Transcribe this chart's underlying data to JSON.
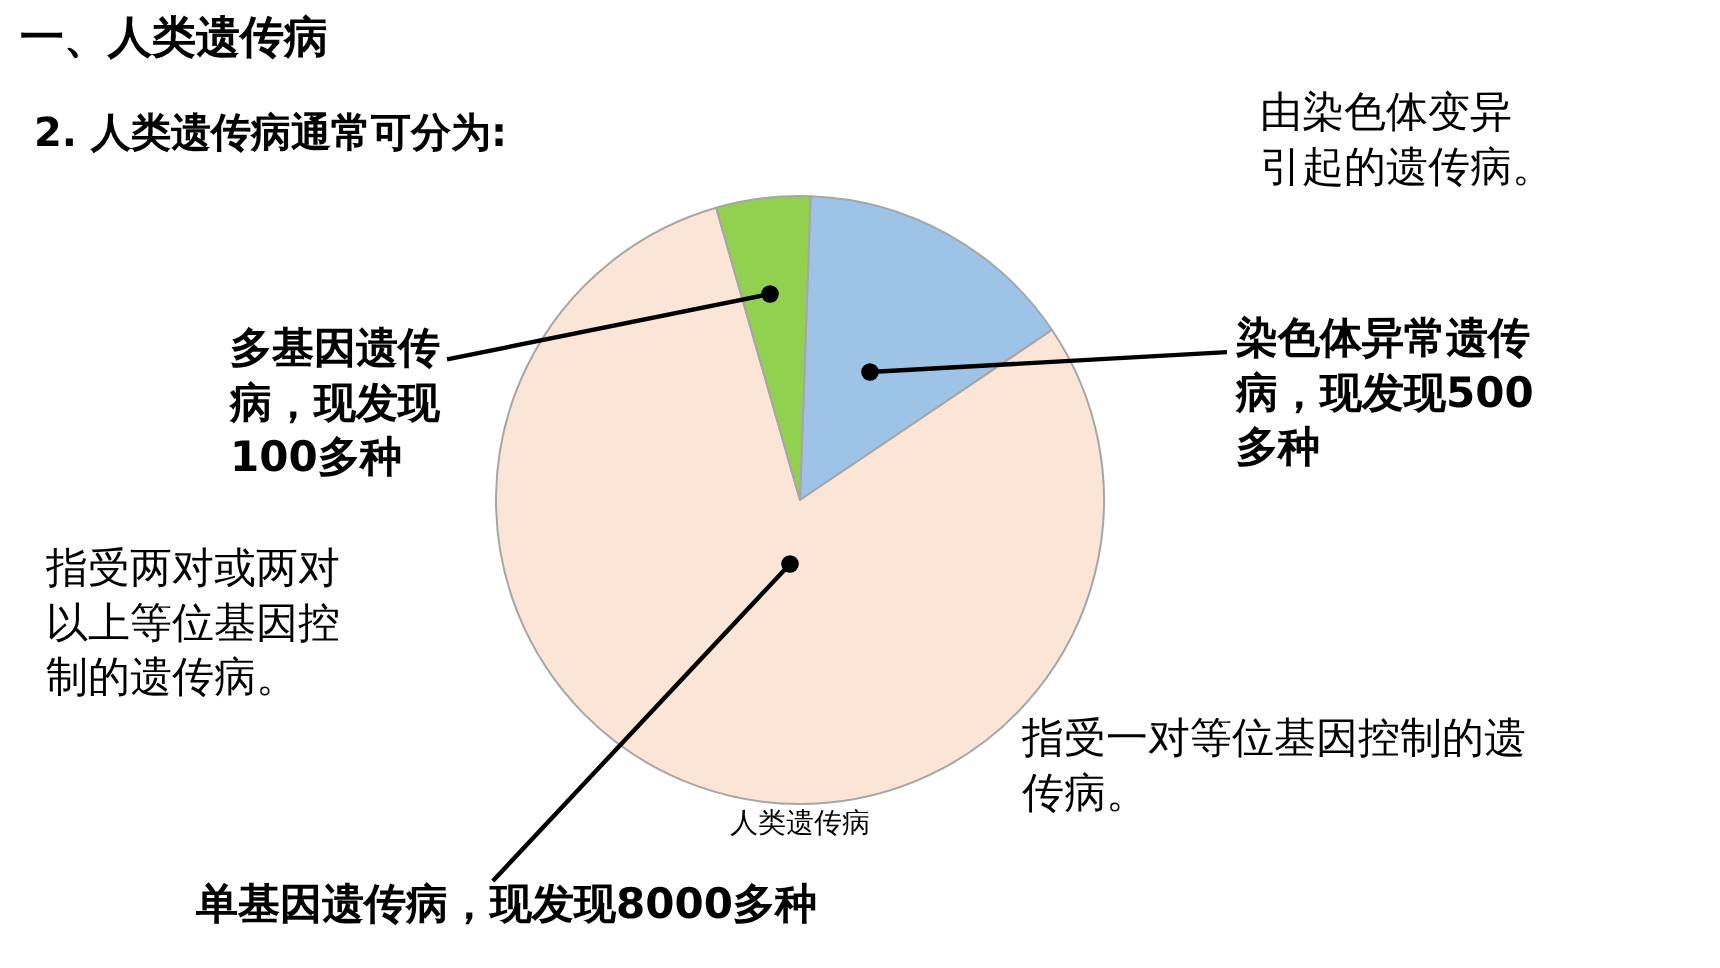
{
  "chart_data": {
    "type": "pie",
    "title": "人类遗传病",
    "categories": [
      "染色体异常遗传病，现发现500多种",
      "单基因遗传病，现发现8000多种",
      "多基因遗传病，现发现100多种"
    ],
    "values": [
      15,
      80,
      5
    ],
    "colors": [
      "#9dc3e6",
      "#fbe5d6",
      "#92d050"
    ],
    "annotations": [
      "一、人类遗传病",
      "2. 人类遗传病通常可分为:",
      "由染色体变异引起的遗传病。",
      "指受两对或两对以上等位基因控制的遗传病。",
      "指受一对等位基因控制的遗传病。"
    ],
    "legend": false
  }
}
